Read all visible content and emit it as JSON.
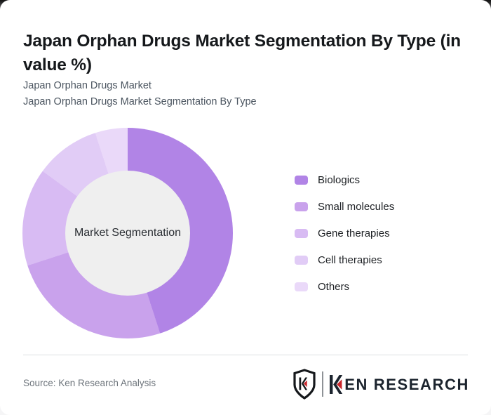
{
  "header": {
    "title": "Japan Orphan Drugs Market Segmentation By Type (in value %)",
    "subtitle_line1": "Japan Orphan Drugs Market",
    "subtitle_line2": "Japan Orphan Drugs Market Segmentation By Type"
  },
  "chart_data": {
    "type": "pie",
    "variant": "donut",
    "title": "Japan Orphan Drugs Market Segmentation By Type (in value %)",
    "unit": "value %",
    "center_label": "Market Segmentation",
    "categories": [
      "Biologics",
      "Small molecules",
      "Gene therapies",
      "Cell therapies",
      "Others"
    ],
    "values": [
      45,
      25,
      15,
      10,
      5
    ],
    "colors": [
      "#b184e6",
      "#c9a2ec",
      "#d8bbf3",
      "#e1ccf6",
      "#ead9f9"
    ],
    "hole_color": "#efefef",
    "start_angle_deg": 0,
    "direction": "clockwise",
    "legend_position": "right",
    "grid": false
  },
  "footer": {
    "source": "Source: Ken Research Analysis",
    "logo": {
      "brand_full": "KEN RESEARCH",
      "monogram": "K",
      "brand_rest": "EN RESEARCH",
      "accent": "#c9252b",
      "ink": "#1c242e"
    }
  }
}
